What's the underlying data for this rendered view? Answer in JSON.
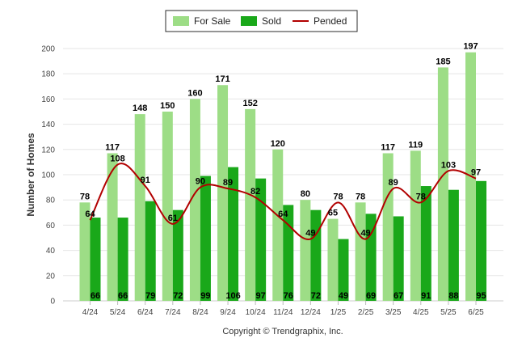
{
  "chart_data": {
    "type": "bar",
    "categories": [
      "4/24",
      "5/24",
      "6/24",
      "7/24",
      "8/24",
      "9/24",
      "10/24",
      "11/24",
      "12/24",
      "1/25",
      "2/25",
      "3/25",
      "4/25",
      "5/25",
      "6/25"
    ],
    "series": [
      {
        "name": "For Sale",
        "type": "bar",
        "color": "#9ddd86",
        "values": [
          78,
          117,
          148,
          150,
          160,
          171,
          152,
          120,
          80,
          65,
          78,
          117,
          119,
          185,
          197
        ]
      },
      {
        "name": "Sold",
        "type": "bar",
        "color": "#1aa81a",
        "values": [
          66,
          66,
          79,
          72,
          99,
          106,
          97,
          76,
          72,
          49,
          69,
          67,
          91,
          88,
          95
        ]
      },
      {
        "name": "Pended",
        "type": "line",
        "color": "#b20000",
        "values": [
          64,
          108,
          91,
          61,
          90,
          89,
          82,
          64,
          49,
          78,
          49,
          89,
          78,
          103,
          97
        ]
      }
    ],
    "ylabel": "Number of Homes",
    "xlabel": "",
    "ylim": [
      0,
      200
    ],
    "yticks": [
      0,
      20,
      40,
      60,
      80,
      100,
      120,
      140,
      160,
      180,
      200
    ],
    "grid": true,
    "legend_position": "top-center",
    "footer": "Copyright © Trendgraphix, Inc."
  }
}
